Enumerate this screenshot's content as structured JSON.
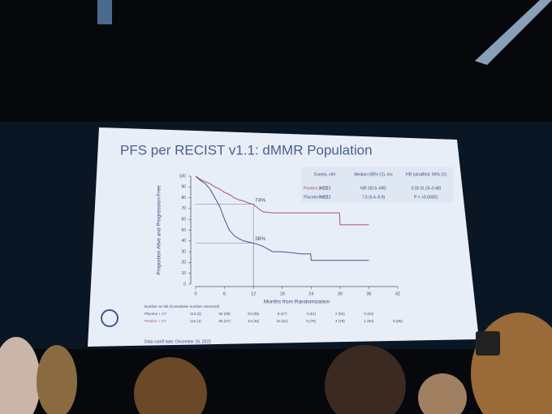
{
  "slide": {
    "title": "PFS per RECIST v1.1: dMMR Population",
    "footnote": "Data cutoff date: December 16, 2022"
  },
  "chart_data": {
    "type": "line",
    "xlabel": "Months from Randomization",
    "ylabel": "Proportion Alive and Progression-Free",
    "xlim": [
      0,
      42
    ],
    "ylim": [
      0,
      100
    ],
    "xticks": [
      0,
      6,
      12,
      18,
      24,
      30,
      36,
      42
    ],
    "yticks": [
      0,
      10,
      20,
      30,
      40,
      50,
      60,
      70,
      80,
      90,
      100
    ],
    "series": [
      {
        "name": "Pembro + CT",
        "color": "#b0506a",
        "x": [
          0,
          1,
          2,
          3,
          4,
          5,
          6,
          7,
          8,
          9,
          10,
          11,
          12,
          13,
          14,
          16,
          18,
          20,
          22,
          24,
          29.9,
          30,
          33,
          36
        ],
        "values": [
          100,
          97,
          95,
          93,
          90,
          88,
          85,
          83,
          80,
          78,
          77,
          75,
          74,
          70,
          67,
          66,
          66,
          66,
          66,
          66,
          66,
          55,
          55,
          55
        ]
      },
      {
        "name": "Placebo + CT",
        "color": "#3f5a8a",
        "x": [
          0,
          1,
          2,
          3,
          4,
          5,
          6,
          7,
          8,
          9,
          10,
          11,
          12,
          14,
          16,
          18,
          20,
          22,
          23.9,
          24,
          27,
          30,
          33,
          36
        ],
        "values": [
          100,
          96,
          93,
          88,
          80,
          72,
          60,
          50,
          45,
          42,
          40,
          39,
          38,
          35,
          30,
          30,
          29,
          28,
          28,
          22,
          22,
          22,
          22,
          22
        ]
      }
    ],
    "annotations": [
      {
        "text": "74%",
        "x": 12,
        "y": 74
      },
      {
        "text": "38%",
        "x": 12,
        "y": 38
      }
    ]
  },
  "summary_table": {
    "header": [
      "Events, n/N",
      "Median (95% CI), mo",
      "HR (stratified; 95% CI)"
    ],
    "rows": [
      [
        "Pembro + CT",
        "26/112",
        "NR (30.6–NR)",
        "0.30 (0.19–0.48)"
      ],
      [
        "Placebo + CT",
        "59/113",
        "7.6 (6.4–9.9)",
        "P = <0.00001"
      ]
    ]
  },
  "at_risk": {
    "title": "Number at risk (Cumulative number censored)",
    "rows": [
      [
        "Placebo + CT",
        "113 (2)",
        "62 (29)",
        "24 (35)",
        "8 (47)",
        "4 (51)",
        "2 (52)",
        "0 (54)"
      ],
      [
        "Pembro + CT",
        "112 (1)",
        "80 (27)",
        "44 (46)",
        "22 (61)",
        "9 (76)",
        "4 (79)",
        "1 (84)",
        "0 (86)"
      ]
    ]
  }
}
